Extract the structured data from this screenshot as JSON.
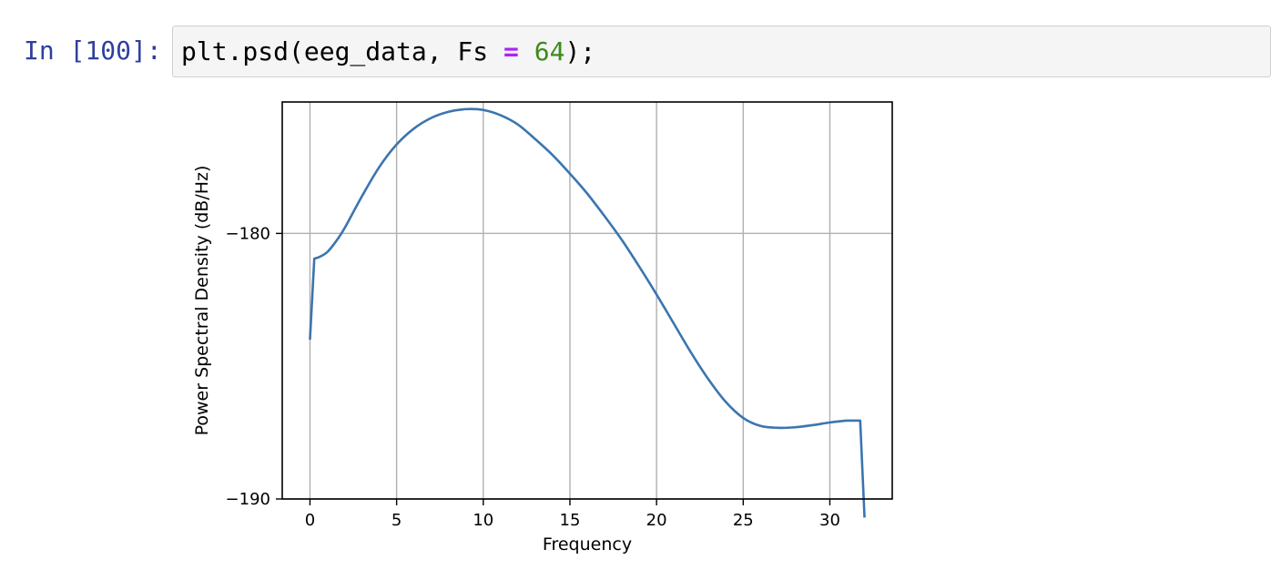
{
  "cell": {
    "prompt": "In [100]:",
    "code": {
      "fn": "plt.psd(eeg_data, Fs ",
      "op": "=",
      "space": " ",
      "num": "64",
      "tail": ");"
    }
  },
  "chart_data": {
    "type": "line",
    "title": "",
    "xlabel": "Frequency",
    "ylabel": "Power Spectral Density (dB/Hz)",
    "xlim": [
      -1.6,
      33.6
    ],
    "ylim": [
      -190,
      -175.05
    ],
    "xticks": [
      0,
      5,
      10,
      15,
      20,
      25,
      30
    ],
    "yticks": [
      -190,
      -180
    ],
    "xtick_labels": [
      "0",
      "5",
      "10",
      "15",
      "20",
      "25",
      "30"
    ],
    "ytick_labels": [
      "−190",
      "−180"
    ],
    "grid": true,
    "line_color": "#3b75af",
    "series": [
      {
        "x": [
          0,
          0.25,
          0.5,
          1,
          1.5,
          2,
          3,
          4,
          5,
          6,
          7,
          8,
          9,
          10,
          11,
          12,
          13,
          14,
          15,
          16,
          17,
          18,
          19,
          20,
          21,
          22,
          23,
          24,
          25,
          26,
          27,
          28,
          29,
          30,
          31,
          31.75,
          32
        ],
        "y": [
          -184,
          -180.95,
          -180.9,
          -180.7,
          -180.3,
          -179.8,
          -178.6,
          -177.5,
          -176.65,
          -176.05,
          -175.65,
          -175.42,
          -175.32,
          -175.35,
          -175.55,
          -175.9,
          -176.45,
          -177.05,
          -177.75,
          -178.5,
          -179.35,
          -180.25,
          -181.25,
          -182.3,
          -183.4,
          -184.5,
          -185.5,
          -186.35,
          -186.95,
          -187.25,
          -187.32,
          -187.3,
          -187.22,
          -187.12,
          -187.05,
          -187.05,
          -190.7
        ]
      }
    ]
  }
}
